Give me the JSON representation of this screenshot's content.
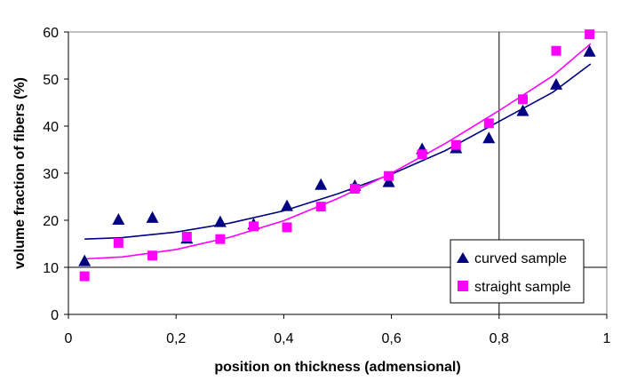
{
  "chart_data": {
    "type": "scatter",
    "xlabel": "position on thickness (admensional)",
    "ylabel": "volume fraction of fibers (%)",
    "xlim": [
      0,
      1
    ],
    "ylim": [
      0,
      60
    ],
    "x_ticks": [
      "0",
      "0,2",
      "0,4",
      "0,6",
      "0,8",
      "1"
    ],
    "x_tick_values": [
      0,
      0.2,
      0.4,
      0.6,
      0.8,
      1
    ],
    "y_ticks": [
      "0",
      "10",
      "20",
      "30",
      "40",
      "50",
      "60"
    ],
    "y_tick_values": [
      0,
      10,
      20,
      30,
      40,
      50,
      60
    ],
    "gridlines": {
      "horizontal_y": [
        10
      ],
      "vertical_x": [
        0.8
      ]
    },
    "legend_position": "bottom-right",
    "series": [
      {
        "name": "curved sample",
        "marker": "triangle",
        "color": "#000080",
        "points": [
          [
            0.03,
            11.2
          ],
          [
            0.093,
            20.0
          ],
          [
            0.156,
            20.4
          ],
          [
            0.22,
            16.0
          ],
          [
            0.282,
            19.5
          ],
          [
            0.344,
            19.0
          ],
          [
            0.406,
            22.9
          ],
          [
            0.469,
            27.4
          ],
          [
            0.532,
            27.2
          ],
          [
            0.595,
            28.0
          ],
          [
            0.657,
            35.0
          ],
          [
            0.72,
            35.2
          ],
          [
            0.781,
            37.3
          ],
          [
            0.844,
            43.1
          ],
          [
            0.906,
            48.7
          ],
          [
            0.968,
            55.7
          ]
        ],
        "trend": [
          [
            0.03,
            16.0
          ],
          [
            0.1,
            16.3
          ],
          [
            0.2,
            17.5
          ],
          [
            0.3,
            19.4
          ],
          [
            0.4,
            22.0
          ],
          [
            0.5,
            25.6
          ],
          [
            0.6,
            29.8
          ],
          [
            0.7,
            34.8
          ],
          [
            0.8,
            41.0
          ],
          [
            0.9,
            47.2
          ],
          [
            0.97,
            53.2
          ]
        ]
      },
      {
        "name": "straight sample",
        "marker": "square",
        "color": "#ff00ff",
        "points": [
          [
            0.03,
            8.1
          ],
          [
            0.093,
            15.2
          ],
          [
            0.156,
            12.5
          ],
          [
            0.22,
            16.5
          ],
          [
            0.282,
            16.0
          ],
          [
            0.344,
            18.7
          ],
          [
            0.406,
            18.5
          ],
          [
            0.469,
            22.9
          ],
          [
            0.532,
            26.7
          ],
          [
            0.595,
            29.4
          ],
          [
            0.657,
            34.0
          ],
          [
            0.72,
            36.0
          ],
          [
            0.781,
            40.6
          ],
          [
            0.844,
            45.7
          ],
          [
            0.906,
            56.0
          ],
          [
            0.968,
            59.5
          ]
        ],
        "trend": [
          [
            0.03,
            11.8
          ],
          [
            0.1,
            12.2
          ],
          [
            0.2,
            13.8
          ],
          [
            0.3,
            16.4
          ],
          [
            0.4,
            19.9
          ],
          [
            0.5,
            24.6
          ],
          [
            0.6,
            30.0
          ],
          [
            0.7,
            36.3
          ],
          [
            0.8,
            43.3
          ],
          [
            0.9,
            50.7
          ],
          [
            0.97,
            57.5
          ]
        ]
      }
    ]
  }
}
